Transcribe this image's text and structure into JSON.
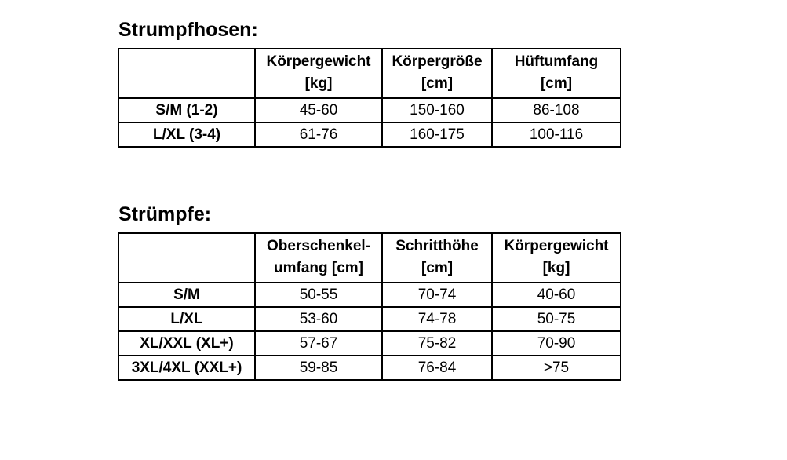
{
  "tables": [
    {
      "title": "Strumpfhosen:",
      "columns": [
        {
          "line1": "",
          "line2": ""
        },
        {
          "line1": "Körpergewicht",
          "line2": "[kg]"
        },
        {
          "line1": "Körpergröße",
          "line2": "[cm]"
        },
        {
          "line1": "Hüftumfang",
          "line2": "[cm]"
        }
      ],
      "rows": [
        {
          "label": "S/M (1-2)",
          "values": [
            "45-60",
            "150-160",
            "86-108"
          ]
        },
        {
          "label": "L/XL (3-4)",
          "values": [
            "61-76",
            "160-175",
            "100-116"
          ]
        }
      ]
    },
    {
      "title": "Strümpfe:",
      "columns": [
        {
          "line1": "",
          "line2": ""
        },
        {
          "line1": "Oberschenkel-",
          "line2": "umfang [cm]"
        },
        {
          "line1": "Schritthöhe",
          "line2": "[cm]"
        },
        {
          "line1": "Körpergewicht",
          "line2": "[kg]"
        }
      ],
      "rows": [
        {
          "label": "S/M",
          "values": [
            "50-55",
            "70-74",
            "40-60"
          ]
        },
        {
          "label": "L/XL",
          "values": [
            "53-60",
            "74-78",
            "50-75"
          ]
        },
        {
          "label": "XL/XXL (XL+)",
          "values": [
            "57-67",
            "75-82",
            "70-90"
          ]
        },
        {
          "label": "3XL/4XL (XXL+)",
          "values": [
            "59-85",
            "76-84",
            ">75"
          ]
        }
      ]
    }
  ],
  "colors": {
    "background": "#ffffff",
    "text": "#000000",
    "border": "#000000"
  }
}
